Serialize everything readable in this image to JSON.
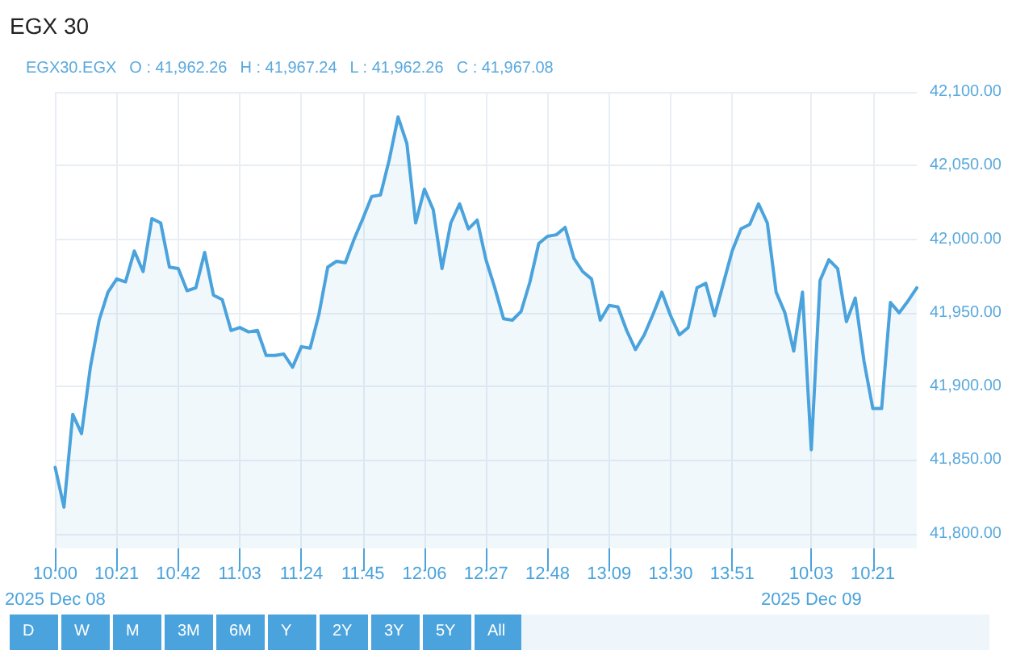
{
  "chart_data": {
    "type": "area",
    "title": "EGX 30",
    "annotations": [
      "EGX30.EGX",
      "O : 41,962.26",
      "H : 41,967.24",
      "L : 41,962.26",
      "C : 41,967.08",
      "D",
      "W",
      "M",
      "3M",
      "6M",
      "Y",
      "2Y",
      "3Y",
      "5Y",
      "All"
    ],
    "categories": [
      "10:00\n2025 Dec 08",
      null,
      null,
      null,
      null,
      null,
      null,
      "10:21",
      null,
      null,
      null,
      null,
      null,
      null,
      "10:42",
      null,
      null,
      null,
      null,
      null,
      null,
      "11:03",
      null,
      null,
      null,
      null,
      null,
      null,
      "11:24",
      null,
      null,
      null,
      null,
      null,
      null,
      "11:45",
      null,
      null,
      null,
      null,
      null,
      null,
      "12:06",
      null,
      null,
      null,
      null,
      null,
      null,
      "12:27",
      null,
      null,
      null,
      null,
      null,
      null,
      "12:48",
      null,
      null,
      null,
      null,
      null,
      null,
      "13:09",
      null,
      null,
      null,
      null,
      null,
      null,
      "13:30",
      null,
      null,
      null,
      null,
      null,
      null,
      "13:51",
      null,
      null,
      null,
      null,
      null,
      null,
      null,
      null,
      "10:03\n2025 Dec 09",
      null,
      null,
      null,
      null,
      null,
      null,
      "10:21",
      null,
      null,
      null,
      null,
      null
    ],
    "series": [
      {
        "color": "#4aa3dc",
        "values": [
          41845,
          41818,
          41881,
          41868,
          41913,
          41945,
          41964,
          41973,
          41971,
          41992,
          41978,
          42014,
          42011,
          41981,
          41980,
          41965,
          41967,
          41991,
          41962,
          41959,
          41938,
          41940,
          41937,
          41938,
          41921,
          41921,
          41922,
          41913,
          41927,
          41926,
          41949,
          41981,
          41985,
          41984,
          42000,
          42014,
          42029,
          42030,
          42054,
          42083,
          42065,
          42011,
          42034,
          42020,
          41980,
          42011,
          42024,
          42007,
          42013,
          41986,
          41967,
          41946,
          41945,
          41951,
          41971,
          41997,
          42002,
          42003,
          42008,
          41987,
          41978,
          41973,
          41945,
          41955,
          41954,
          41938,
          41925,
          41935,
          41949,
          41964,
          41948,
          41935,
          41940,
          41967,
          41970,
          41948,
          41970,
          41992,
          42007,
          42010,
          42024,
          42011,
          41964,
          41950,
          41924,
          41964,
          41857,
          41972,
          41986,
          41980,
          41944,
          41960,
          41917,
          41885,
          41885,
          41957,
          41950,
          41958,
          41967
        ]
      }
    ],
    "ylim": [
      41790,
      42100
    ],
    "yticks": [
      {
        "value": 41800,
        "label": "41,800.00"
      },
      {
        "value": 41850,
        "label": "41,850.00"
      },
      {
        "value": 41900,
        "label": "41,900.00"
      },
      {
        "value": 41950,
        "label": "41,950.00"
      },
      {
        "value": 42000,
        "label": "42,000.00"
      },
      {
        "value": 42050,
        "label": "42,050.00"
      },
      {
        "value": 42100,
        "label": "42,100.00"
      }
    ],
    "grid": true,
    "marker": "none",
    "line_style": "solid"
  }
}
